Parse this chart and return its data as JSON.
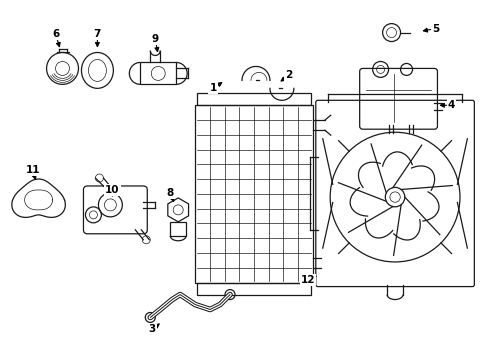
{
  "bg_color": "#ffffff",
  "line_color": "#1a1a1a",
  "label_color": "#000000",
  "label_fontsize": 7.5,
  "arrow_color": "#000000",
  "figw": 4.9,
  "figh": 3.6,
  "dpi": 100
}
